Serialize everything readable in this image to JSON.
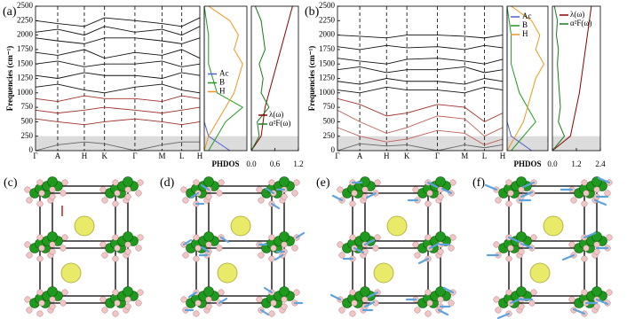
{
  "panels": [
    {
      "label": "(a)",
      "dispersion": {
        "type": "line",
        "ylabel": "Frequencies (cm⁻¹)",
        "categories": [
          "Γ",
          "A",
          "H",
          "K",
          "Γ",
          "M",
          "L",
          "H"
        ],
        "ylim": [
          0,
          2500
        ],
        "yticks": [
          0,
          250,
          500,
          750,
          1000,
          1250,
          1500,
          1750,
          2000,
          2250,
          2500
        ],
        "highlight_range": [
          0,
          250
        ],
        "series": [
          {
            "color": "#111111",
            "values": [
              2250,
              2200,
              2150,
              2300,
              2250,
              2200,
              2150,
              2300
            ]
          },
          {
            "color": "#111111",
            "values": [
              2050,
              2100,
              2000,
              2150,
              2050,
              2100,
              2000,
              2150
            ]
          },
          {
            "color": "#111111",
            "values": [
              1950,
              1900,
              1850,
              1950,
              1950,
              1900,
              1850,
              1950
            ]
          },
          {
            "color": "#111111",
            "values": [
              1700,
              1650,
              1750,
              1600,
              1700,
              1650,
              1750,
              1600
            ]
          },
          {
            "color": "#111111",
            "values": [
              1500,
              1550,
              1450,
              1500,
              1500,
              1550,
              1450,
              1500
            ]
          },
          {
            "color": "#111111",
            "values": [
              1300,
              1250,
              1350,
              1300,
              1300,
              1250,
              1350,
              1300
            ]
          },
          {
            "color": "#111111",
            "values": [
              1100,
              1150,
              1050,
              1000,
              1100,
              1150,
              1050,
              1000
            ]
          },
          {
            "color": "#a0302a",
            "values": [
              900,
              850,
              950,
              900,
              900,
              850,
              950,
              900
            ]
          },
          {
            "color": "#a0302a",
            "values": [
              700,
              650,
              700,
              750,
              700,
              650,
              700,
              750
            ]
          },
          {
            "color": "#a0302a",
            "values": [
              550,
              500,
              450,
              500,
              550,
              500,
              450,
              500
            ]
          },
          {
            "color": "#666666",
            "values": [
              0,
              100,
              150,
              120,
              0,
              100,
              150,
              150
            ]
          }
        ]
      },
      "phdos": {
        "type": "line",
        "xlabel": "PHDOS",
        "legend": "center right",
        "frequencies": [
          0,
          250,
          500,
          750,
          1000,
          1250,
          1500,
          1750,
          2000,
          2250,
          2500
        ],
        "series": [
          {
            "name": "Ac",
            "color": "#4f5fd8",
            "values": [
              0.6,
              0.1,
              0,
              0,
              0,
              0,
              0,
              0,
              0,
              0,
              0
            ]
          },
          {
            "name": "B",
            "color": "#1f9a1f",
            "values": [
              0.1,
              0.3,
              0.5,
              0.9,
              0.3,
              0.2,
              0.1,
              0.1,
              0.1,
              0.05,
              0
            ]
          },
          {
            "name": "H",
            "color": "#f0961e",
            "values": [
              0,
              0.1,
              0.3,
              0.5,
              0.7,
              0.8,
              0.9,
              0.7,
              0.8,
              0.6,
              0.1
            ]
          }
        ]
      },
      "eliashberg": {
        "type": "line",
        "legend": "lower right",
        "xlim": [
          0,
          1.2
        ],
        "xticks": [
          {
            "value": 0,
            "label": "0.0"
          },
          0.6,
          1.2
        ],
        "frequencies": [
          0,
          250,
          500,
          750,
          1000,
          1250,
          1500,
          1750,
          2000,
          2250,
          2500
        ],
        "series": [
          {
            "name": "λ(ω)",
            "color": "#8b0000",
            "values": [
              0,
              0.25,
              0.3,
              0.35,
              0.45,
              0.55,
              0.65,
              0.75,
              0.85,
              0.95,
              1.05
            ]
          },
          {
            "name": "α²F(ω)",
            "color": "#1a7a1a",
            "values": [
              0,
              0.2,
              0.15,
              0.45,
              0.25,
              0.3,
              0.2,
              0.35,
              0.3,
              0.25,
              0.1
            ]
          }
        ]
      }
    },
    {
      "label": "(b)",
      "dispersion": {
        "type": "line",
        "ylabel": "Frequencies (cm⁻¹)",
        "categories": [
          "Γ",
          "A",
          "H",
          "K",
          "Γ",
          "M",
          "L",
          "H"
        ],
        "ylim": [
          0,
          2500
        ],
        "yticks": [
          0,
          250,
          500,
          750,
          1000,
          1250,
          1500,
          1750,
          2000,
          2250,
          2500
        ],
        "highlight_range": [
          0,
          250
        ],
        "series": [
          {
            "color": "#111111",
            "values": [
              2000,
              1980,
              1950,
              2000,
              2000,
              1980,
              1950,
              2000
            ]
          },
          {
            "color": "#111111",
            "values": [
              1800,
              1750,
              1820,
              1780,
              1800,
              1750,
              1820,
              1780
            ]
          },
          {
            "color": "#111111",
            "values": [
              1600,
              1550,
              1500,
              1580,
              1600,
              1550,
              1500,
              1580
            ]
          },
          {
            "color": "#111111",
            "values": [
              1400,
              1450,
              1350,
              1400,
              1400,
              1450,
              1350,
              1400
            ]
          },
          {
            "color": "#111111",
            "values": [
              1200,
              1150,
              1250,
              1200,
              1200,
              1150,
              1250,
              1200
            ]
          },
          {
            "color": "#111111",
            "values": [
              1050,
              1000,
              1100,
              1050,
              1050,
              1000,
              1100,
              1050
            ]
          },
          {
            "color": "#a0302a",
            "values": [
              900,
              800,
              600,
              650,
              800,
              750,
              500,
              650
            ]
          },
          {
            "color": "#c0605a",
            "values": [
              700,
              500,
              300,
              400,
              600,
              550,
              250,
              400
            ]
          },
          {
            "color": "#c0605a",
            "values": [
              400,
              250,
              150,
              200,
              350,
              300,
              100,
              200
            ]
          },
          {
            "color": "#666666",
            "values": [
              0,
              120,
              80,
              100,
              0,
              100,
              50,
              100
            ]
          }
        ]
      },
      "phdos": {
        "type": "line",
        "xlabel": "PHDOS",
        "legend": "upper right",
        "frequencies": [
          0,
          250,
          500,
          750,
          1000,
          1250,
          1500,
          1750,
          2000,
          2250,
          2500
        ],
        "series": [
          {
            "name": "Ac",
            "color": "#4f5fd8",
            "values": [
              0.6,
              0.1,
              0,
              0,
              0,
              0,
              0,
              0,
              0,
              0,
              0
            ]
          },
          {
            "name": "B",
            "color": "#1f9a1f",
            "values": [
              0.1,
              0.4,
              0.7,
              0.5,
              0.3,
              0.2,
              0.1,
              0.1,
              0.1,
              0.05,
              0
            ]
          },
          {
            "name": "H",
            "color": "#f0961e",
            "values": [
              0,
              0.2,
              0.4,
              0.5,
              0.6,
              0.7,
              0.9,
              0.7,
              0.8,
              0.6,
              0.1
            ]
          }
        ]
      },
      "eliashberg": {
        "type": "line",
        "legend": "upper right",
        "xlim": [
          0,
          2.4
        ],
        "xticks": [
          {
            "value": 0,
            "label": "0.0"
          },
          1.2,
          2.4
        ],
        "frequencies": [
          0,
          250,
          500,
          750,
          1000,
          1250,
          1500,
          1750,
          2000,
          2250,
          2500
        ],
        "series": [
          {
            "name": "λ(ω)",
            "color": "#8b0000",
            "values": [
              0,
              0.9,
              1.05,
              1.2,
              1.35,
              1.45,
              1.55,
              1.65,
              1.75,
              1.85,
              1.95
            ]
          },
          {
            "name": "α²F(ω)",
            "color": "#1a7a1a",
            "values": [
              0,
              0.6,
              0.3,
              0.4,
              0.35,
              0.3,
              0.25,
              0.3,
              0.2,
              0.25,
              0.1
            ]
          }
        ]
      }
    }
  ],
  "structures": [
    {
      "label": "(c)"
    },
    {
      "label": "(d)"
    },
    {
      "label": "(e)"
    },
    {
      "label": "(f)"
    }
  ]
}
